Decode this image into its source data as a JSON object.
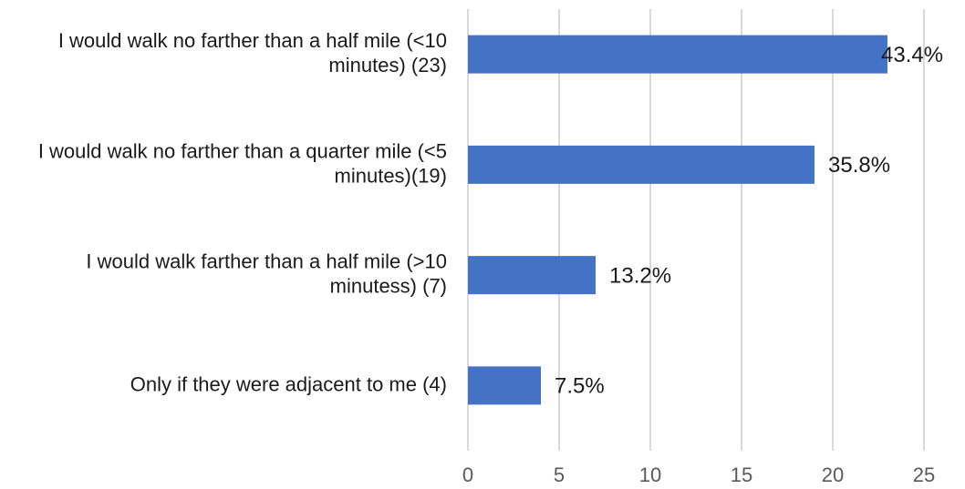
{
  "chart_data": {
    "type": "hbar",
    "categories": [
      "I would walk no farther than a half mile (<10 minutes) (23)",
      "I would walk no farther than a quarter mile (<5 minutes)(19)",
      "I would walk farther than a half mile (>10 minutess) (7)",
      "Only if they were adjacent to me (4)"
    ],
    "values": [
      23,
      19,
      7,
      4
    ],
    "labels": {
      "values": [
        43.4,
        35.8,
        13.2,
        7.5
      ],
      "value_labels": [
        "43.4%",
        "35.8%",
        "13.2%",
        "7.5%"
      ]
    },
    "color": "#4472c4",
    "xlim": [
      0,
      25
    ],
    "xticks": [
      0,
      5,
      10,
      15,
      20,
      25
    ],
    "grid": true
  }
}
